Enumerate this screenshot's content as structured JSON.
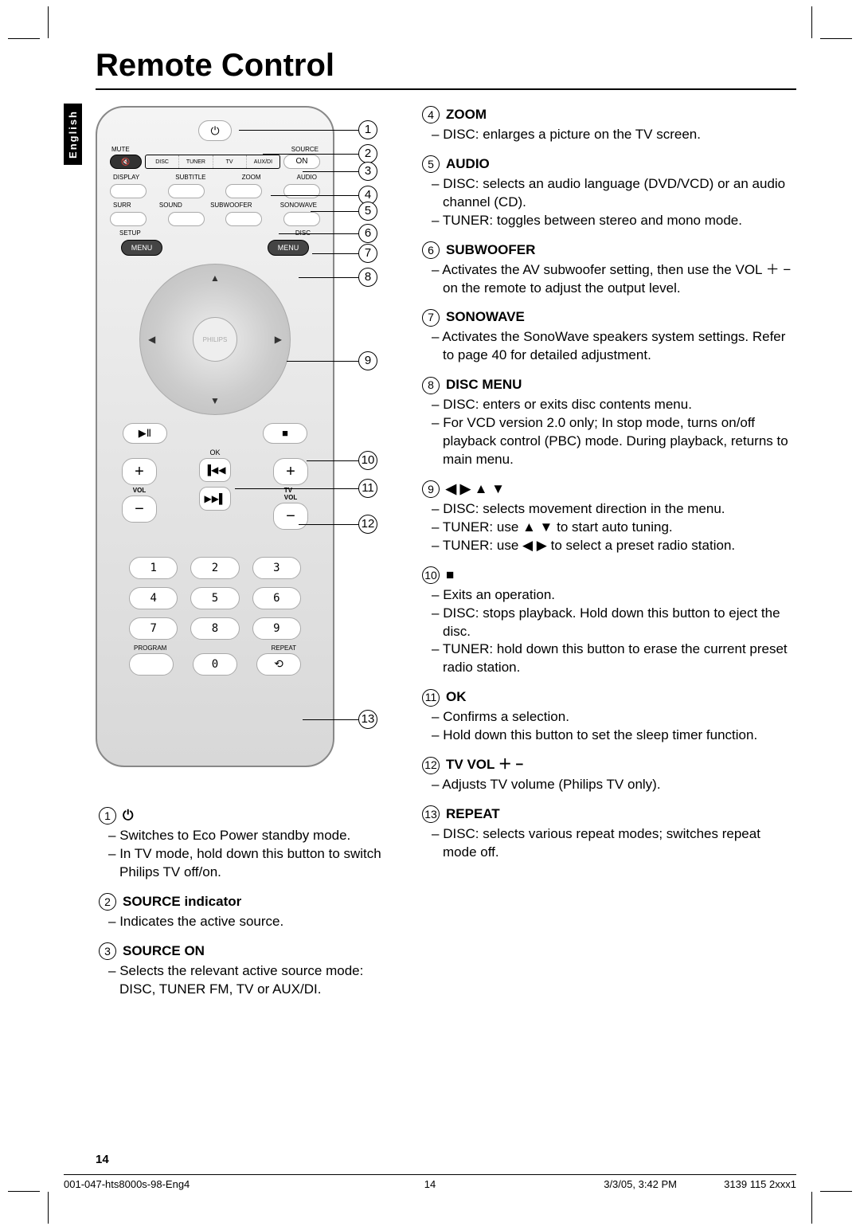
{
  "title": "Remote Control",
  "language_tab": "English",
  "remote": {
    "mute_label": "MUTE",
    "source_label": "SOURCE",
    "source_strip": [
      "DISC",
      "TUNER",
      "TV",
      "AUX/DI"
    ],
    "mute_icon": "🔇",
    "on_btn": "ON",
    "row2_labels": [
      "DISPLAY",
      "SUBTITLE",
      "ZOOM",
      "AUDIO"
    ],
    "row3_labels": [
      "SURR",
      "SOUND",
      "SUBWOOFER",
      "SONOWAVE"
    ],
    "setup_label": "SETUP",
    "disc_label": "DISC",
    "menu_btn": "MENU",
    "dpad_brand": "PHILIPS",
    "play_pause": "▶Ⅱ",
    "stop": "■",
    "ok_label": "OK",
    "prev": "▐◀◀",
    "next": "▶▶▌",
    "vol_label": "VOL",
    "tvvol_label1": "TV",
    "tvvol_label2": "VOL",
    "plus": "+",
    "minus": "−",
    "nums": [
      "1",
      "2",
      "3",
      "4",
      "5",
      "6",
      "7",
      "8",
      "9",
      "0"
    ],
    "program_label": "PROGRAM",
    "repeat_label": "REPEAT",
    "repeat_icon": "⟲"
  },
  "callouts": {
    "c1": "1",
    "c2": "2",
    "c3": "3",
    "c4": "4",
    "c5": "5",
    "c6": "6",
    "c7": "7",
    "c8": "8",
    "c9": "9",
    "c10": "10",
    "c11": "11",
    "c12": "12",
    "c13": "13"
  },
  "left_descriptions": [
    {
      "num": "1",
      "title": "⏻",
      "lines": [
        "Switches to Eco Power standby mode.",
        "In TV mode, hold down this button to switch Philips TV off/on."
      ]
    },
    {
      "num": "2",
      "title": "SOURCE indicator",
      "lines": [
        "Indicates the active source."
      ]
    },
    {
      "num": "3",
      "title": "SOURCE ON",
      "lines": [
        "Selects the relevant active source mode: DISC, TUNER FM, TV or AUX/DI."
      ]
    }
  ],
  "right_descriptions": [
    {
      "num": "4",
      "title": "ZOOM",
      "lines": [
        "DISC: enlarges a picture on the TV screen."
      ]
    },
    {
      "num": "5",
      "title": "AUDIO",
      "lines": [
        "DISC: selects an audio language (DVD/VCD) or an audio channel (CD).",
        "TUNER: toggles between stereo and mono mode."
      ]
    },
    {
      "num": "6",
      "title": "SUBWOOFER",
      "lines": [
        "Activates the AV subwoofer setting, then use the VOL ＋ − on the remote to adjust the output level."
      ]
    },
    {
      "num": "7",
      "title": "SONOWAVE",
      "lines": [
        "Activates the SonoWave speakers system settings.  Refer to page 40 for detailed adjustment."
      ]
    },
    {
      "num": "8",
      "title": "DISC MENU",
      "lines": [
        "DISC: enters or exits disc contents menu.",
        "For VCD version 2.0 only; In stop mode, turns on/off playback control (PBC) mode. During playback, returns to main menu."
      ]
    },
    {
      "num": "9",
      "title": "◀ ▶ ▲ ▼",
      "lines": [
        "DISC: selects movement direction in the menu.",
        "TUNER: use ▲ ▼ to start auto tuning.",
        "TUNER: use ◀ ▶ to select a preset radio station."
      ]
    },
    {
      "num": "10",
      "title": "■",
      "lines": [
        "Exits an operation.",
        "DISC: stops playback.  Hold down this button to eject the disc.",
        "TUNER: hold down this button to erase the current preset radio station."
      ]
    },
    {
      "num": "11",
      "title": "OK",
      "lines": [
        "Confirms a selection.",
        "Hold down this button to set the sleep timer function."
      ]
    },
    {
      "num": "12",
      "title": "TV VOL ＋ −",
      "lines": [
        "Adjusts TV volume (Philips TV only)."
      ]
    },
    {
      "num": "13",
      "title": "REPEAT",
      "lines": [
        "DISC: selects various repeat modes; switches repeat mode off."
      ]
    }
  ],
  "page_number": "14",
  "footer": {
    "left": "001-047-hts8000s-98-Eng4",
    "mid": "14",
    "right1": "3/3/05, 3:42 PM",
    "right2": "3139 115 2xxx1"
  },
  "colors": {
    "text": "#000000",
    "page_bg": "#ffffff",
    "remote_border": "#888888"
  }
}
